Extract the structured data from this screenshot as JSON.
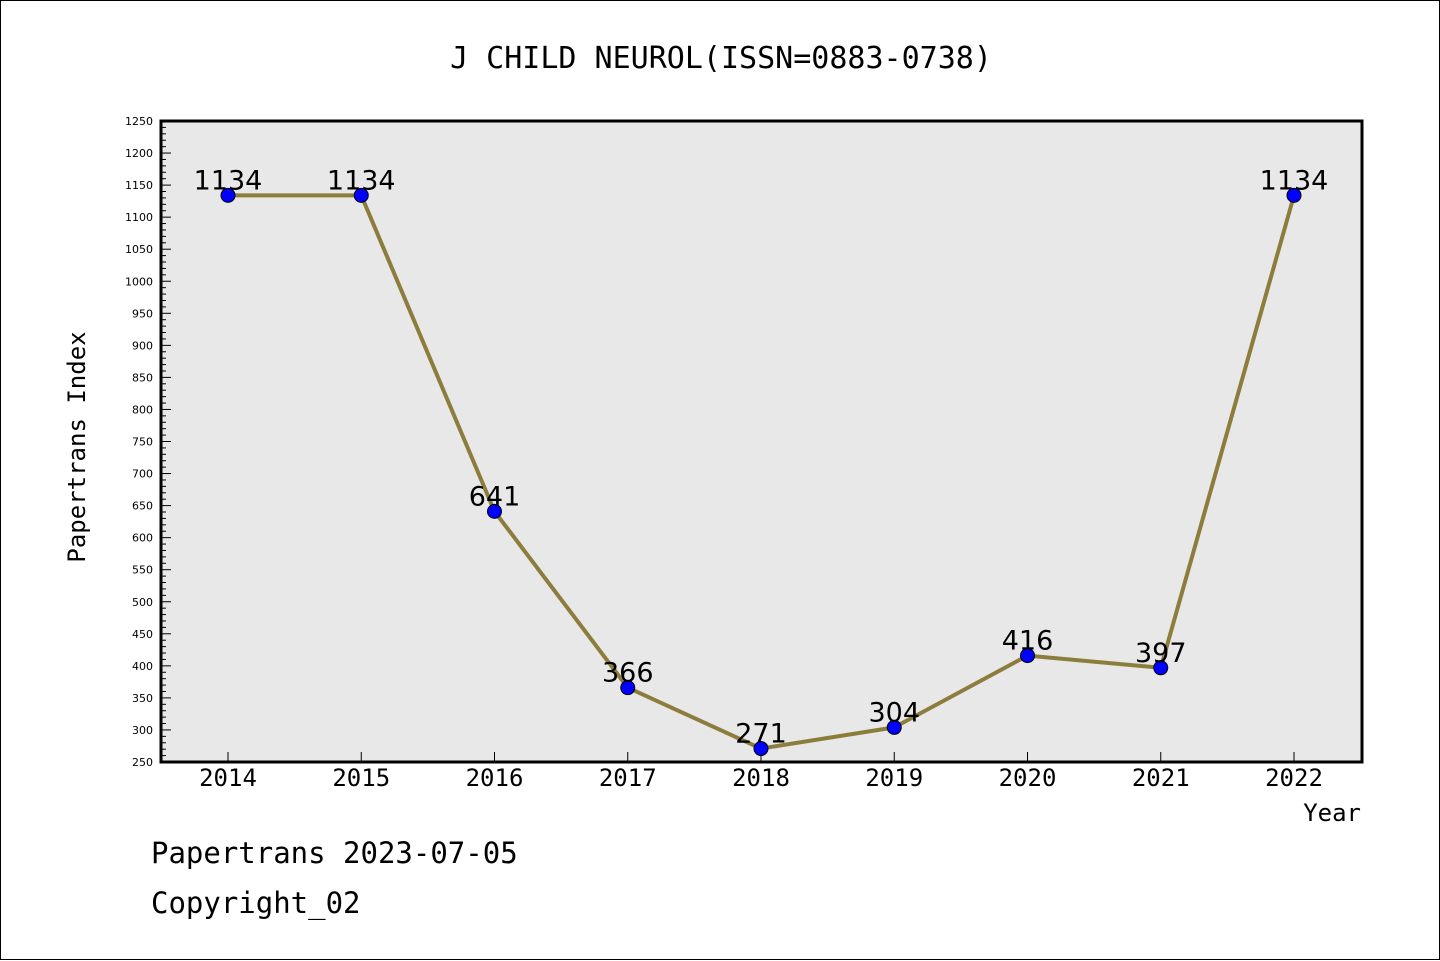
{
  "chart_data": {
    "type": "line",
    "title": "J CHILD NEUROL(ISSN=0883-0738)",
    "xlabel": "Year",
    "ylabel": "Papertrans Index",
    "categories": [
      "2014",
      "2015",
      "2016",
      "2017",
      "2018",
      "2019",
      "2020",
      "2021",
      "2022"
    ],
    "series": [
      {
        "values": [
          1134,
          1134,
          641,
          366,
          271,
          304,
          416,
          397,
          1134
        ]
      }
    ],
    "data_labels": [
      "1134",
      "1134",
      "641",
      "366",
      "271",
      "304",
      "416",
      "397",
      "1134"
    ],
    "ylim": [
      250,
      1250
    ],
    "y_major_step": 50,
    "y_minor_step": 10,
    "y_tick_labels": [
      "250",
      "300",
      "350",
      "400",
      "450",
      "500",
      "550",
      "600",
      "650",
      "700",
      "750",
      "800",
      "850",
      "900",
      "950",
      "1000",
      "1050",
      "1100",
      "1150",
      "1200",
      "1250"
    ],
    "grid": false,
    "legend": "none",
    "colors": {
      "line": "#8c7d3c",
      "marker": "#0000ff",
      "plot_background": "#e8e8e8",
      "axis": "#000000"
    }
  },
  "footer": {
    "date_line": "Papertrans 2023-07-05",
    "copyright": "Copyright_02"
  }
}
